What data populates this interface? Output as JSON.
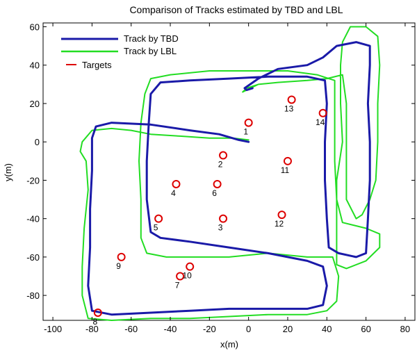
{
  "chart_data": {
    "type": "scatter",
    "title": "Comparison of Tracks estimated by TBD and LBL",
    "xlabel": "x(m)",
    "ylabel": "y(m)",
    "xlim": [
      -105,
      85
    ],
    "ylim": [
      -93,
      62
    ],
    "xticks": [
      -100,
      -80,
      -60,
      -40,
      -20,
      0,
      20,
      40,
      60,
      80
    ],
    "yticks": [
      -80,
      -60,
      -40,
      -20,
      0,
      20,
      40,
      60
    ],
    "grid": false,
    "legend_position": "top-left",
    "legend": [
      {
        "key": "tbd",
        "label": "Track by TBD",
        "color": "#1a1aa8"
      },
      {
        "key": "lbl",
        "label": "Track by LBL",
        "color": "#22dd22"
      },
      {
        "key": "targets",
        "label": "Targets",
        "color": "#dd0000"
      }
    ],
    "series": [
      {
        "name": "Track by TBD",
        "color": "#1a1aa8",
        "points": [
          [
            0,
            0
          ],
          [
            -5,
            1
          ],
          [
            -15,
            4
          ],
          [
            -30,
            6
          ],
          [
            -50,
            9
          ],
          [
            -70,
            10
          ],
          [
            -78,
            8
          ],
          [
            -80,
            2
          ],
          [
            -80,
            -15
          ],
          [
            -81,
            -35
          ],
          [
            -81,
            -55
          ],
          [
            -82,
            -75
          ],
          [
            -80,
            -88
          ],
          [
            -70,
            -90
          ],
          [
            -50,
            -89
          ],
          [
            -30,
            -88
          ],
          [
            -10,
            -87
          ],
          [
            10,
            -87
          ],
          [
            30,
            -87
          ],
          [
            38,
            -85
          ],
          [
            40,
            -75
          ],
          [
            38,
            -65
          ],
          [
            30,
            -62
          ],
          [
            10,
            -58
          ],
          [
            -10,
            -55
          ],
          [
            -30,
            -52
          ],
          [
            -45,
            -50
          ],
          [
            -50,
            -47
          ],
          [
            -52,
            -30
          ],
          [
            -52,
            -10
          ],
          [
            -51,
            10
          ],
          [
            -50,
            25
          ],
          [
            -45,
            31
          ],
          [
            -30,
            32
          ],
          [
            -10,
            33
          ],
          [
            10,
            34
          ],
          [
            30,
            34
          ],
          [
            39,
            32
          ],
          [
            40,
            20
          ],
          [
            39,
            0
          ],
          [
            39,
            -20
          ],
          [
            40,
            -40
          ],
          [
            41,
            -55
          ],
          [
            46,
            -58
          ],
          [
            55,
            -60
          ],
          [
            60,
            -58
          ],
          [
            61,
            -40
          ],
          [
            62,
            -20
          ],
          [
            62,
            0
          ],
          [
            61,
            20
          ],
          [
            62,
            40
          ],
          [
            62,
            50
          ],
          [
            55,
            52
          ],
          [
            45,
            50
          ],
          [
            38,
            44
          ],
          [
            30,
            40
          ],
          [
            15,
            38
          ],
          [
            5,
            33
          ],
          [
            -2,
            28
          ],
          [
            -1,
            27
          ],
          [
            2,
            28
          ]
        ]
      },
      {
        "name": "Track by LBL",
        "color": "#22dd22",
        "points": [
          [
            0,
            1
          ],
          [
            -8,
            2
          ],
          [
            -20,
            2
          ],
          [
            -35,
            3
          ],
          [
            -50,
            4
          ],
          [
            -60,
            6
          ],
          [
            -70,
            7
          ],
          [
            -80,
            6
          ],
          [
            -85,
            0
          ],
          [
            -86,
            -5
          ],
          [
            -83,
            -10
          ],
          [
            -82,
            -25
          ],
          [
            -84,
            -45
          ],
          [
            -85,
            -65
          ],
          [
            -85,
            -80
          ],
          [
            -82,
            -92
          ],
          [
            -70,
            -93
          ],
          [
            -50,
            -92
          ],
          [
            -30,
            -92
          ],
          [
            -10,
            -91
          ],
          [
            10,
            -90
          ],
          [
            30,
            -90
          ],
          [
            40,
            -88
          ],
          [
            45,
            -83
          ],
          [
            46,
            -70
          ],
          [
            43,
            -60
          ],
          [
            30,
            -60
          ],
          [
            10,
            -58
          ],
          [
            -10,
            -60
          ],
          [
            -30,
            -60
          ],
          [
            -42,
            -60
          ],
          [
            -52,
            -58
          ],
          [
            -55,
            -50
          ],
          [
            -55,
            -30
          ],
          [
            -56,
            -10
          ],
          [
            -55,
            10
          ],
          [
            -53,
            25
          ],
          [
            -50,
            33
          ],
          [
            -40,
            35
          ],
          [
            -20,
            37
          ],
          [
            0,
            37
          ],
          [
            20,
            37
          ],
          [
            35,
            35
          ],
          [
            44,
            32
          ],
          [
            44,
            10
          ],
          [
            44,
            -10
          ],
          [
            45,
            -30
          ],
          [
            48,
            -42
          ],
          [
            60,
            -45
          ],
          [
            67,
            -48
          ],
          [
            67,
            -55
          ],
          [
            60,
            -62
          ],
          [
            50,
            -66
          ],
          [
            45,
            -64
          ],
          [
            45,
            -50
          ],
          [
            45,
            -20
          ],
          [
            48,
            0
          ],
          [
            47,
            20
          ],
          [
            47,
            40
          ],
          [
            48,
            52
          ],
          [
            52,
            60
          ],
          [
            60,
            60
          ],
          [
            66,
            55
          ],
          [
            67,
            40
          ],
          [
            66,
            20
          ],
          [
            66,
            0
          ],
          [
            65,
            -20
          ],
          [
            62,
            -30
          ],
          [
            58,
            -38
          ],
          [
            55,
            -40
          ],
          [
            50,
            -30
          ],
          [
            50,
            5
          ],
          [
            50,
            20
          ],
          [
            48,
            35
          ],
          [
            40,
            33
          ],
          [
            30,
            32
          ],
          [
            15,
            31
          ],
          [
            5,
            30
          ],
          [
            -1,
            28
          ],
          [
            -3,
            26
          ],
          [
            5,
            30
          ]
        ]
      }
    ],
    "targets": [
      {
        "label": "1",
        "x": 0,
        "y": 10
      },
      {
        "label": "2",
        "x": -13,
        "y": -7
      },
      {
        "label": "3",
        "x": -13,
        "y": -40
      },
      {
        "label": "4",
        "x": -37,
        "y": -22
      },
      {
        "label": "5",
        "x": -46,
        "y": -40
      },
      {
        "label": "6",
        "x": -16,
        "y": -22
      },
      {
        "label": "7",
        "x": -35,
        "y": -70
      },
      {
        "label": "8",
        "x": -77,
        "y": -89
      },
      {
        "label": "9",
        "x": -65,
        "y": -60
      },
      {
        "label": "10",
        "x": -30,
        "y": -65
      },
      {
        "label": "11",
        "x": 20,
        "y": -10
      },
      {
        "label": "12",
        "x": 17,
        "y": -38
      },
      {
        "label": "13",
        "x": 22,
        "y": 22
      },
      {
        "label": "14",
        "x": 38,
        "y": 15
      }
    ]
  }
}
